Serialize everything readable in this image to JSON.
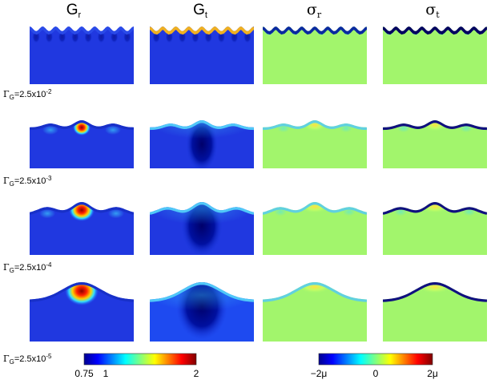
{
  "headers": [
    {
      "base": "G",
      "sub": "r"
    },
    {
      "base": "G",
      "sub": "t"
    },
    {
      "base": "σ",
      "sub": "r"
    },
    {
      "base": "σ",
      "sub": "t"
    }
  ],
  "row_labels": [
    {
      "symbol": "Γ",
      "sub": "G",
      "text": "=2.5x10",
      "exp": "-2"
    },
    {
      "symbol": "Γ",
      "sub": "G",
      "text": "=2.5x10",
      "exp": "-3"
    },
    {
      "symbol": "Γ",
      "sub": "G",
      "text": "=2.5x10",
      "exp": "-4"
    },
    {
      "symbol": "Γ",
      "sub": "G",
      "text": "=2.5x10",
      "exp": "-5"
    }
  ],
  "colorbars": [
    {
      "labels": [
        "0.75",
        "1",
        "2"
      ]
    },
    {
      "labels": [
        "−2μ",
        "0",
        "2μ"
      ]
    }
  ]
}
